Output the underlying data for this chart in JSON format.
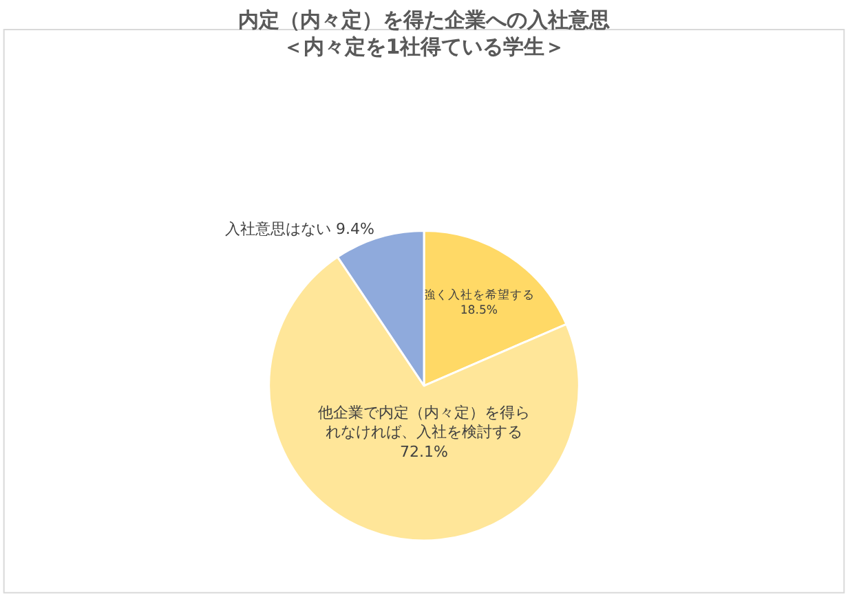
{
  "chart_data": {
    "type": "pie",
    "title": "内定（内々定）を得た企業への入社意思",
    "subtitle": "＜内々定を1社得ている学生＞",
    "categories": [
      "強く入社を希望する",
      "他企業で内定（内々定）を得られなければ、入社を検討する",
      "入社意思はない"
    ],
    "values": [
      18.5,
      72.1,
      9.4
    ],
    "colors": [
      "#ffd966",
      "#ffe699",
      "#8faadc"
    ],
    "value_labels": [
      "18.5%",
      "72.1%",
      "9.4%"
    ],
    "legend": false
  }
}
